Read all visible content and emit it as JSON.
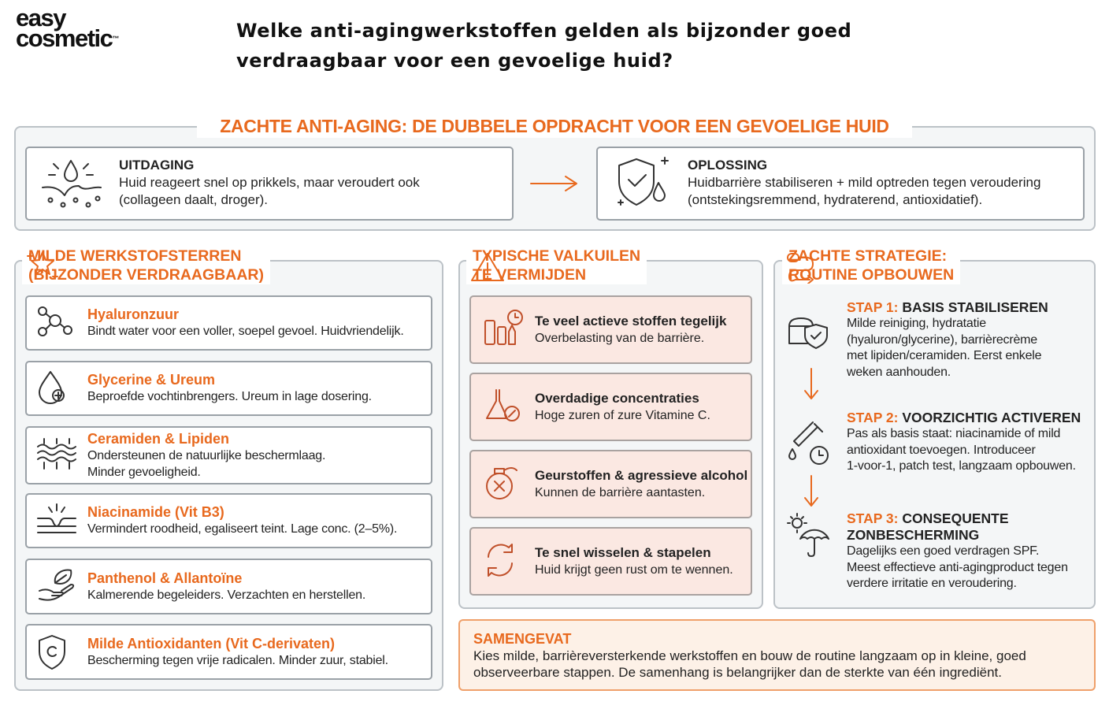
{
  "logo": {
    "line1": "easy",
    "line2": "cosmetic",
    "mark": "™"
  },
  "question": {
    "lines": [
      "Welke anti-agingwerkstoffen gelden als bijzonder goed",
      "verdraagbaar voor een gevoelige huid?"
    ]
  },
  "banner": {
    "title": "ZACHTE ANTI-AGING: DE DUBBELE OPDRACHT VOOR EEN GEVOELIGE HUID",
    "challenge": {
      "heading": "UITDAGING",
      "lines": [
        "Huid reageert snel op prikkels, maar veroudert ook",
        "(collageen daalt, droger)."
      ]
    },
    "solution": {
      "heading": "OPLOSSING",
      "lines": [
        "Huidbarrière stabiliseren + mild optreden tegen veroudering",
        "(ontstekingsremmend, hydraterend, antioxidatief)."
      ]
    }
  },
  "stars": {
    "heading": [
      "MILDE WERKSTOFSTERREN",
      "(BIJZONDER VERDRAAGBAAR)"
    ],
    "items": [
      {
        "name": "Hyaluronzuur",
        "lines": [
          "Bindt water voor een voller, soepel gevoel. Huidvriendelijk."
        ]
      },
      {
        "name": "Glycerine & Ureum",
        "lines": [
          "Beproefde vochtinbrengers. Ureum in lage dosering."
        ]
      },
      {
        "name": "Ceramiden & Lipiden",
        "lines": [
          "Ondersteunen de natuurlijke beschermlaag.",
          "Minder gevoeligheid."
        ]
      },
      {
        "name": "Niacinamide (Vit B3)",
        "lines": [
          "Vermindert roodheid, egaliseert teint. Lage conc. (2–5%)."
        ]
      },
      {
        "name": "Panthenol & Allantoïne",
        "lines": [
          "Kalmerende begeleiders. Verzachten en herstellen."
        ]
      },
      {
        "name": "Milde Antioxidanten (Vit C-derivaten)",
        "lines": [
          "Bescherming tegen vrije radicalen. Minder zuur, stabiel."
        ]
      }
    ]
  },
  "pitfalls": {
    "heading": [
      "TYPISCHE VALKUILEN",
      "TE VERMIJDEN"
    ],
    "items": [
      {
        "title": "Te veel actieve stoffen tegelijk",
        "text": "Overbelasting van de barrière."
      },
      {
        "title": "Overdadige concentraties",
        "text": "Hoge zuren of zure Vitamine C."
      },
      {
        "title": "Geurstoffen & agressieve alcohol",
        "text": "Kunnen de barrière aantasten."
      },
      {
        "title": "Te snel wisselen & stapelen",
        "text": "Huid krijgt geen rust om te wennen."
      }
    ]
  },
  "strategy": {
    "heading": [
      "ZACHTE STRATEGIE:",
      "ROUTINE OPBOUWEN"
    ],
    "steps": [
      {
        "label": "STAP 1:",
        "title": [
          "BASIS STABILISEREN"
        ],
        "lines": [
          "Milde reiniging, hydratatie",
          "(hyaluron/glycerine), barrièrecrème",
          "met lipiden/ceramiden. Eerst enkele",
          "weken aanhouden."
        ]
      },
      {
        "label": "STAP 2:",
        "title": [
          "VOORZICHTIG ACTIVEREN"
        ],
        "lines": [
          "Pas als basis staat: niacinamide of mild",
          "antioxidant toevoegen. Introduceer",
          "1-voor-1, patch test, langzaam opbouwen."
        ]
      },
      {
        "label": "STAP 3:",
        "title": [
          "CONSEQUENTE",
          "ZONBESCHERMING"
        ],
        "lines": [
          "Dagelijks een goed verdragen SPF.",
          "Meest effectieve anti-agingproduct tegen",
          "verdere irritatie en veroudering."
        ]
      }
    ]
  },
  "summary": {
    "heading": "SAMENGEVAT",
    "lines": [
      "Kies milde, barrièreversterkende werkstoffen en bouw de routine langzaam op in kleine, goed",
      "observeerbare stappen. De samenhang is belangrijker dan de sterkte van één ingrediënt."
    ]
  }
}
